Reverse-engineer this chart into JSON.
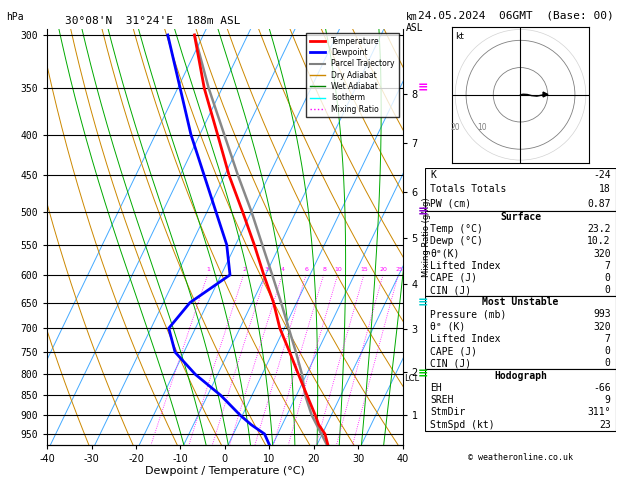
{
  "title_left": "30°08'N  31°24'E  188m ASL",
  "title_right": "24.05.2024  06GMT  (Base: 00)",
  "xlabel": "Dewpoint / Temperature (°C)",
  "pressure_levels": [
    300,
    350,
    400,
    450,
    500,
    550,
    600,
    650,
    700,
    750,
    800,
    850,
    900,
    950
  ],
  "temp_profile": {
    "pressure": [
      993,
      950,
      925,
      900,
      850,
      800,
      750,
      700,
      650,
      600,
      550,
      500,
      450,
      400,
      350,
      300
    ],
    "temp": [
      23.2,
      20.6,
      18.2,
      16.4,
      12.4,
      8.2,
      3.8,
      -1.0,
      -5.2,
      -10.4,
      -15.8,
      -22.0,
      -29.0,
      -36.0,
      -44.0,
      -52.0
    ]
  },
  "dewpoint_profile": {
    "pressure": [
      993,
      950,
      925,
      900,
      850,
      800,
      750,
      700,
      650,
      600,
      550,
      500,
      400,
      300
    ],
    "temp": [
      10.2,
      7.0,
      3.0,
      -0.5,
      -7.0,
      -15.0,
      -22.0,
      -26.0,
      -24.0,
      -18.0,
      -22.0,
      -28.0,
      -42.0,
      -58.0
    ]
  },
  "parcel_profile": {
    "pressure": [
      993,
      950,
      900,
      850,
      800,
      750,
      700,
      650,
      600,
      550,
      500,
      450,
      400,
      350,
      300
    ],
    "temp": [
      23.2,
      19.8,
      15.6,
      12.0,
      9.0,
      5.2,
      1.0,
      -3.5,
      -8.5,
      -14.0,
      -20.0,
      -27.0,
      -34.5,
      -43.0,
      -52.0
    ]
  },
  "lcl_pressure": 810,
  "mixing_ratio_lines": [
    1,
    2,
    3,
    4,
    6,
    8,
    10,
    15,
    20,
    25
  ],
  "stats": {
    "K": -24,
    "Totals_Totals": 18,
    "PW_cm": 0.87,
    "Surf_Temp": 23.2,
    "Surf_Dewp": 10.2,
    "Surf_ThetaE": 320,
    "Surf_LI": 7,
    "Surf_CAPE": 0,
    "Surf_CIN": 0,
    "MU_Pressure": 993,
    "MU_ThetaE": 320,
    "MU_LI": 7,
    "MU_CAPE": 0,
    "MU_CIN": 0,
    "EH": -66,
    "SREH": 9,
    "StmDir": 311,
    "StmSpd_kt": 23
  },
  "colors": {
    "temperature": "#ff0000",
    "dewpoint": "#0000ff",
    "parcel": "#888888",
    "dry_adiabat": "#cc8800",
    "wet_adiabat": "#00aa00",
    "isotherm": "#44aaff",
    "mixing_ratio": "#ff00ff",
    "background": "#ffffff",
    "grid": "#000000"
  },
  "wind_barbs": [
    {
      "pressure": 350,
      "color": "#ff00ff"
    },
    {
      "pressure": 500,
      "color": "#8800cc"
    },
    {
      "pressure": 650,
      "color": "#00cccc"
    },
    {
      "pressure": 800,
      "color": "#00cc00"
    }
  ]
}
